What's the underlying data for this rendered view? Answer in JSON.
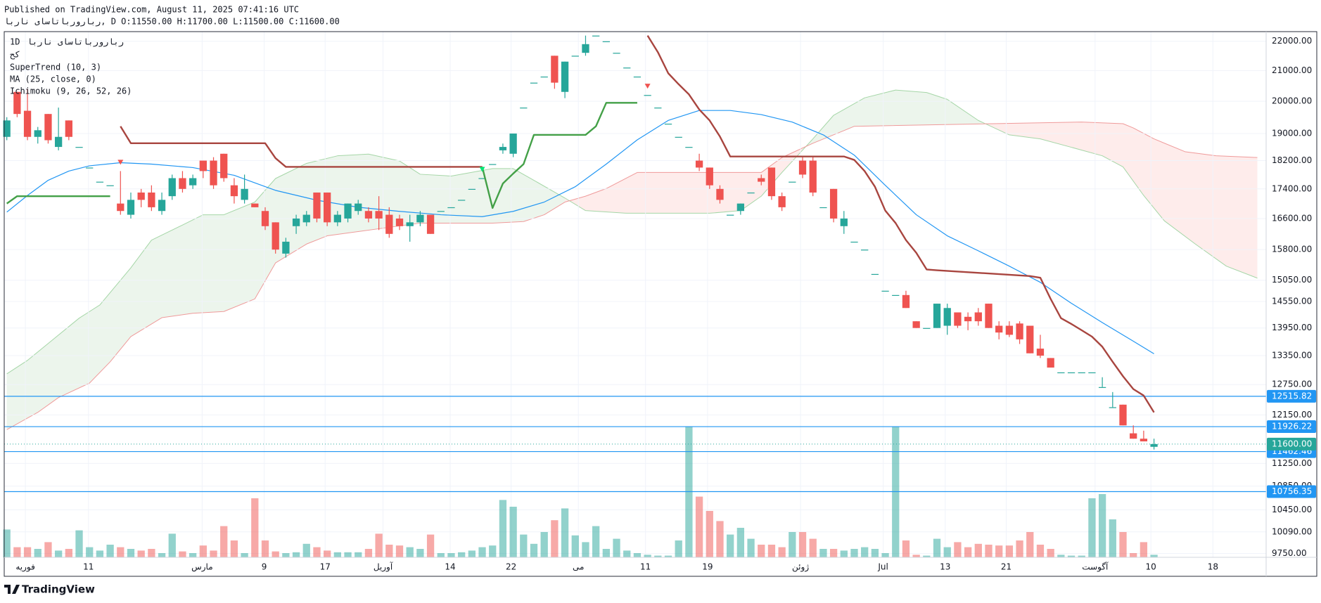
{
  "chart_data": {
    "type": "candlestick",
    "published": "Published on TradingView.com, August 11, 2025 07:41:16 UTC",
    "ohlc_line": "ربارورباتاسای ناربا, D O:11550.00 H:11700.00 L:11500.00 C:11600.00",
    "symbol": "ربارورباتاسای ناربا",
    "interval": "1D",
    "exchange": "کح",
    "brand": "TradingView",
    "log_scale": true,
    "grid": true,
    "xlim": [
      -0.25,
      121.85
    ],
    "ylim": [
      9690,
      22340
    ],
    "xticks": [
      {
        "value": 1.8,
        "label": "فوریه"
      },
      {
        "value": 7.9,
        "label": "11"
      },
      {
        "value": 18.9,
        "label": "مارس"
      },
      {
        "value": 24.9,
        "label": "9"
      },
      {
        "value": 30.8,
        "label": "17"
      },
      {
        "value": 36.4,
        "label": "آوریل"
      },
      {
        "value": 42.9,
        "label": "14"
      },
      {
        "value": 48.8,
        "label": "22"
      },
      {
        "value": 55.3,
        "label": "می"
      },
      {
        "value": 61.8,
        "label": "11"
      },
      {
        "value": 67.8,
        "label": "19"
      },
      {
        "value": 76.8,
        "label": "ژوئن"
      },
      {
        "value": 84.8,
        "label": "Jul"
      },
      {
        "value": 90.8,
        "label": "13"
      },
      {
        "value": 96.7,
        "label": "21"
      },
      {
        "value": 105.3,
        "label": "آگوست"
      },
      {
        "value": 110.7,
        "label": "10"
      },
      {
        "value": 116.7,
        "label": "18"
      }
    ],
    "yticks": [
      {
        "value": 22000,
        "label": "22000.00"
      },
      {
        "value": 21000,
        "label": "21000.00"
      },
      {
        "value": 20000,
        "label": "20000.00"
      },
      {
        "value": 19000,
        "label": "19000.00"
      },
      {
        "value": 18200,
        "label": "18200.00"
      },
      {
        "value": 17400,
        "label": "17400.00"
      },
      {
        "value": 16600,
        "label": "16600.00"
      },
      {
        "value": 15800,
        "label": "15800.00"
      },
      {
        "value": 15050,
        "label": "15050.00"
      },
      {
        "value": 14550,
        "label": "14550.00"
      },
      {
        "value": 13950,
        "label": "13950.00"
      },
      {
        "value": 13350,
        "label": "13350.00"
      },
      {
        "value": 12750,
        "label": "12750.00"
      },
      {
        "value": 12150,
        "label": "12150.00"
      },
      {
        "value": 11250,
        "label": "11250.00"
      },
      {
        "value": 10850,
        "label": "10850.00"
      },
      {
        "value": 10450,
        "label": "10450.00"
      },
      {
        "value": 10090,
        "label": "10090.00"
      },
      {
        "value": 9750,
        "label": "9750.00"
      }
    ],
    "up_color": "#26a69a",
    "down_color": "#ef5350",
    "candles": {
      "x": [
        0,
        1,
        2,
        3,
        4,
        5,
        6,
        7,
        8,
        9,
        10,
        11,
        12,
        13,
        14,
        15,
        16,
        17,
        18,
        19,
        20,
        21,
        22,
        23,
        24,
        25,
        26,
        27,
        28,
        29,
        30,
        31,
        32,
        33,
        34,
        35,
        36,
        37,
        38,
        39,
        40,
        41,
        42,
        43,
        44,
        45,
        46,
        47,
        48,
        49,
        50,
        51,
        52,
        53,
        54,
        55,
        56,
        57,
        58,
        59,
        60,
        61,
        62,
        63,
        64,
        65,
        66,
        67,
        68,
        69,
        70,
        71,
        72,
        73,
        74,
        75,
        76,
        77,
        78,
        79,
        80,
        81,
        82,
        83,
        84,
        85,
        86,
        87,
        88,
        89,
        90,
        91,
        92,
        93,
        94,
        95,
        96,
        97,
        98,
        99,
        100,
        101,
        102,
        103,
        104,
        105,
        106,
        107,
        108,
        109,
        110,
        111
      ],
      "open": [
        18900,
        20300,
        19700,
        18900,
        19600,
        18600,
        19400,
        18600,
        18000,
        17600,
        17500,
        17000,
        16700,
        17300,
        17300,
        16800,
        17200,
        17700,
        17500,
        18200,
        18200,
        18400,
        17500,
        17100,
        17000,
        16800,
        16500,
        15700,
        16400,
        16500,
        17300,
        17300,
        16500,
        16600,
        16800,
        16800,
        16800,
        16700,
        16600,
        16400,
        16500,
        16700,
        16800,
        16900,
        17100,
        17400,
        17700,
        18100,
        18500,
        18400,
        19800,
        20600,
        20800,
        21500,
        20300,
        21500,
        21600,
        22200,
        22000,
        21600,
        21100,
        20800,
        20200,
        19800,
        19300,
        18900,
        18600,
        18200,
        18000,
        17400,
        16700,
        16800,
        17300,
        17700,
        18000,
        17200,
        17600,
        18200,
        18200,
        16900,
        17400,
        16400,
        16000,
        15800,
        15200,
        14800,
        14700,
        14700,
        14100,
        13950,
        13950,
        14000,
        14300,
        14200,
        14300,
        14500,
        14000,
        14000,
        14050,
        14000,
        13500,
        13300,
        13000,
        13000,
        13000,
        13000,
        12700,
        12300,
        12350,
        11800,
        11700,
        11550
      ],
      "high": [
        19500,
        20300,
        20400,
        19200,
        19600,
        19800,
        19400,
        18600,
        18000,
        17600,
        17500,
        17900,
        17300,
        17400,
        17500,
        17300,
        17800,
        17900,
        17800,
        18200,
        18300,
        18400,
        17700,
        17800,
        17000,
        16900,
        16500,
        16100,
        16700,
        16800,
        17300,
        17300,
        16800,
        17000,
        17100,
        16900,
        17200,
        16900,
        16700,
        16700,
        16800,
        16700,
        16800,
        16900,
        17100,
        17400,
        17700,
        18100,
        18700,
        19000,
        19800,
        20600,
        20800,
        21500,
        21300,
        21500,
        22200,
        22200,
        22000,
        21600,
        21100,
        20800,
        20200,
        19800,
        19300,
        18900,
        18600,
        18400,
        18000,
        17500,
        16700,
        17000,
        17300,
        17800,
        18000,
        17300,
        17600,
        18300,
        18300,
        16900,
        17400,
        16800,
        16000,
        15800,
        15200,
        14800,
        14700,
        14800,
        14100,
        13950,
        14500,
        14500,
        14300,
        14300,
        14400,
        14500,
        14100,
        14100,
        14100,
        14000,
        13800,
        13300,
        13000,
        13000,
        13000,
        13000,
        12900,
        12600,
        12350,
        11950,
        11850,
        11700
      ],
      "low": [
        18800,
        19500,
        18800,
        18700,
        18700,
        18500,
        18800,
        18600,
        18000,
        17600,
        17500,
        16700,
        16600,
        16900,
        16800,
        16700,
        17100,
        17300,
        17400,
        17700,
        17400,
        17600,
        17000,
        17000,
        16900,
        16300,
        15700,
        15600,
        16200,
        16400,
        16500,
        16400,
        16400,
        16500,
        16700,
        16500,
        16300,
        16100,
        16300,
        16000,
        16400,
        16200,
        16800,
        16900,
        17100,
        17400,
        17700,
        18100,
        18400,
        18300,
        19800,
        20600,
        20800,
        20400,
        20100,
        21500,
        21500,
        22200,
        22000,
        21600,
        21100,
        20800,
        20200,
        19800,
        19300,
        18900,
        18600,
        17900,
        17400,
        17000,
        16700,
        16700,
        17300,
        17500,
        17100,
        16800,
        17600,
        17700,
        17200,
        16900,
        16500,
        16200,
        16000,
        15800,
        15200,
        14800,
        14700,
        14400,
        13950,
        13950,
        13950,
        13800,
        13950,
        13900,
        14000,
        13950,
        13700,
        13750,
        13600,
        13400,
        13300,
        13100,
        13000,
        13000,
        13000,
        13000,
        12700,
        12300,
        11950,
        11700,
        11650,
        11500
      ],
      "close": [
        19400,
        19600,
        18900,
        19100,
        18800,
        18900,
        18900,
        18600,
        18000,
        17600,
        17500,
        16800,
        17100,
        17100,
        16900,
        17100,
        17700,
        17400,
        17700,
        17900,
        17500,
        17700,
        17200,
        17400,
        16900,
        16400,
        15800,
        16000,
        16600,
        16700,
        16600,
        16500,
        16700,
        17000,
        17000,
        16600,
        16600,
        16200,
        16400,
        16500,
        16700,
        16200,
        16800,
        16900,
        17100,
        17400,
        17700,
        18100,
        18600,
        19000,
        19800,
        20600,
        20800,
        20600,
        21300,
        21500,
        21900,
        22200,
        22000,
        21600,
        21100,
        20800,
        20200,
        19800,
        19300,
        18900,
        18600,
        18000,
        17500,
        17100,
        16700,
        17000,
        17300,
        17600,
        17200,
        16900,
        17600,
        17800,
        17300,
        16900,
        16600,
        16600,
        16000,
        15800,
        15200,
        14800,
        14700,
        14400,
        13950,
        13950,
        14500,
        14400,
        14000,
        14100,
        14100,
        13950,
        13850,
        13800,
        13700,
        13400,
        13350,
        13100,
        13000,
        13000,
        13000,
        13000,
        12700,
        12300,
        11950,
        11700,
        11650,
        11600
      ]
    },
    "volume": {
      "lim": [
        0,
        155
      ],
      "values": [
        33,
        12,
        12,
        10,
        18,
        8,
        10,
        32,
        12,
        8,
        15,
        12,
        10,
        8,
        10,
        5,
        28,
        7,
        5,
        14,
        8,
        37,
        20,
        5,
        70,
        20,
        7,
        5,
        6,
        16,
        12,
        8,
        6,
        6,
        6,
        10,
        28,
        15,
        14,
        12,
        10,
        27,
        5,
        5,
        6,
        8,
        12,
        14,
        68,
        60,
        27,
        16,
        30,
        44,
        58,
        26,
        18,
        37,
        10,
        22,
        8,
        5,
        3,
        2,
        2,
        20,
        155,
        72,
        55,
        43,
        27,
        35,
        22,
        15,
        15,
        12,
        30,
        30,
        22,
        10,
        10,
        8,
        10,
        12,
        10,
        5,
        155,
        20,
        3,
        2,
        22,
        12,
        18,
        12,
        16,
        15,
        14,
        14,
        20,
        30,
        15,
        10,
        3,
        2,
        2,
        70,
        75,
        45,
        30,
        5,
        18,
        3
      ]
    },
    "supertrend": {
      "name": "SuperTrend (10, 3)",
      "segments": [
        {
          "color": "#43a047",
          "x": [
            0,
            1,
            10
          ],
          "values": [
            17000,
            17200,
            17200
          ]
        },
        {
          "color": "#a8453f",
          "x": [
            11,
            12,
            25,
            26,
            27,
            46
          ],
          "values": [
            19220,
            18710,
            18710,
            18270,
            18020,
            18020
          ]
        },
        {
          "color": "#43a047",
          "x": [
            46,
            47,
            48,
            49,
            50,
            51,
            56,
            57,
            58,
            61
          ],
          "values": [
            18020,
            16880,
            17550,
            17830,
            18100,
            18960,
            18960,
            19220,
            19950,
            19950
          ]
        },
        {
          "color": "#a8453f",
          "x": [
            62,
            63,
            64,
            65,
            66,
            67,
            68,
            69,
            70,
            81,
            82,
            83,
            84,
            85,
            86,
            87,
            88,
            89,
            90,
            99,
            100,
            101,
            102,
            103,
            104,
            105,
            106,
            107,
            108,
            109,
            110,
            111
          ],
          "values": [
            22200,
            21620,
            20910,
            20550,
            20220,
            19740,
            19400,
            18910,
            18320,
            18320,
            18220,
            17900,
            17460,
            16810,
            16480,
            16040,
            15720,
            15310,
            15290,
            15150,
            15110,
            14610,
            14170,
            14040,
            13900,
            13760,
            13540,
            13220,
            12920,
            12660,
            12530,
            12200
          ]
        }
      ]
    },
    "ma": {
      "name": "MA (25, close, 0)",
      "color": "#2196f3",
      "x": [
        0,
        2,
        4,
        6,
        8,
        11,
        14,
        18,
        22,
        26,
        30,
        34,
        38,
        42,
        46,
        49,
        52,
        55,
        58,
        61,
        64,
        67,
        70,
        73,
        76,
        79,
        82,
        85,
        88,
        91,
        94,
        97,
        100,
        103,
        106,
        109,
        111
      ],
      "values": [
        16770,
        17220,
        17640,
        17900,
        18050,
        18140,
        18100,
        18000,
        17780,
        17360,
        17090,
        16900,
        16790,
        16700,
        16650,
        16790,
        17040,
        17460,
        18100,
        18810,
        19400,
        19710,
        19710,
        19580,
        19350,
        18960,
        18360,
        17500,
        16700,
        16150,
        15770,
        15390,
        15000,
        14510,
        14070,
        13660,
        13390
      ]
    },
    "ichimoku": {
      "name": "Ichimoku (9, 26, 52, 26)",
      "span_a": {
        "color": "#a5d6a7",
        "fill": "rgba(67,160,71,0.1)",
        "x": [
          0,
          2,
          4,
          7,
          9,
          12,
          14,
          17,
          19,
          21,
          24,
          26,
          29,
          32,
          35,
          38,
          40,
          43,
          47,
          49,
          51,
          54,
          56,
          60,
          68,
          71,
          73,
          75,
          78,
          80,
          83,
          86,
          89,
          91,
          94,
          97,
          100,
          103,
          106,
          108,
          110,
          112,
          115,
          118,
          121
        ],
        "values": [
          12970,
          13250,
          13610,
          14170,
          14470,
          15350,
          16040,
          16430,
          16700,
          16700,
          17040,
          17690,
          18120,
          18340,
          18390,
          18190,
          17810,
          17760,
          17970,
          17970,
          17640,
          17150,
          16810,
          16740,
          16740,
          16810,
          17200,
          17860,
          18840,
          19560,
          20110,
          20360,
          20280,
          20060,
          19400,
          18960,
          18840,
          18590,
          18340,
          18020,
          17220,
          16540,
          15940,
          15390,
          15100
        ]
      },
      "span_b": {
        "color": "#ef9a9a",
        "fill": "rgba(244,67,54,0.1)",
        "x": [
          0,
          3,
          5,
          8,
          10,
          12,
          15,
          18,
          21,
          24,
          26,
          29,
          31,
          34,
          37,
          40,
          47,
          50,
          52,
          54,
          56,
          58,
          61,
          73,
          75,
          78,
          81,
          82,
          104,
          108,
          109,
          111,
          114,
          117,
          121
        ],
        "values": [
          11870,
          12200,
          12490,
          12780,
          13220,
          13760,
          14180,
          14280,
          14320,
          14610,
          15470,
          15940,
          16150,
          16260,
          16370,
          16480,
          16480,
          16520,
          16700,
          17040,
          17200,
          17410,
          17860,
          17860,
          18290,
          18710,
          19090,
          19220,
          19350,
          19300,
          19170,
          18840,
          18460,
          18340,
          18290
        ]
      }
    },
    "levels": [
      12515.82,
      11926.22,
      11462.46,
      10756.35
    ],
    "level_color": "#2196f3",
    "last_price": {
      "value": 11600,
      "label": "11600.00"
    }
  }
}
